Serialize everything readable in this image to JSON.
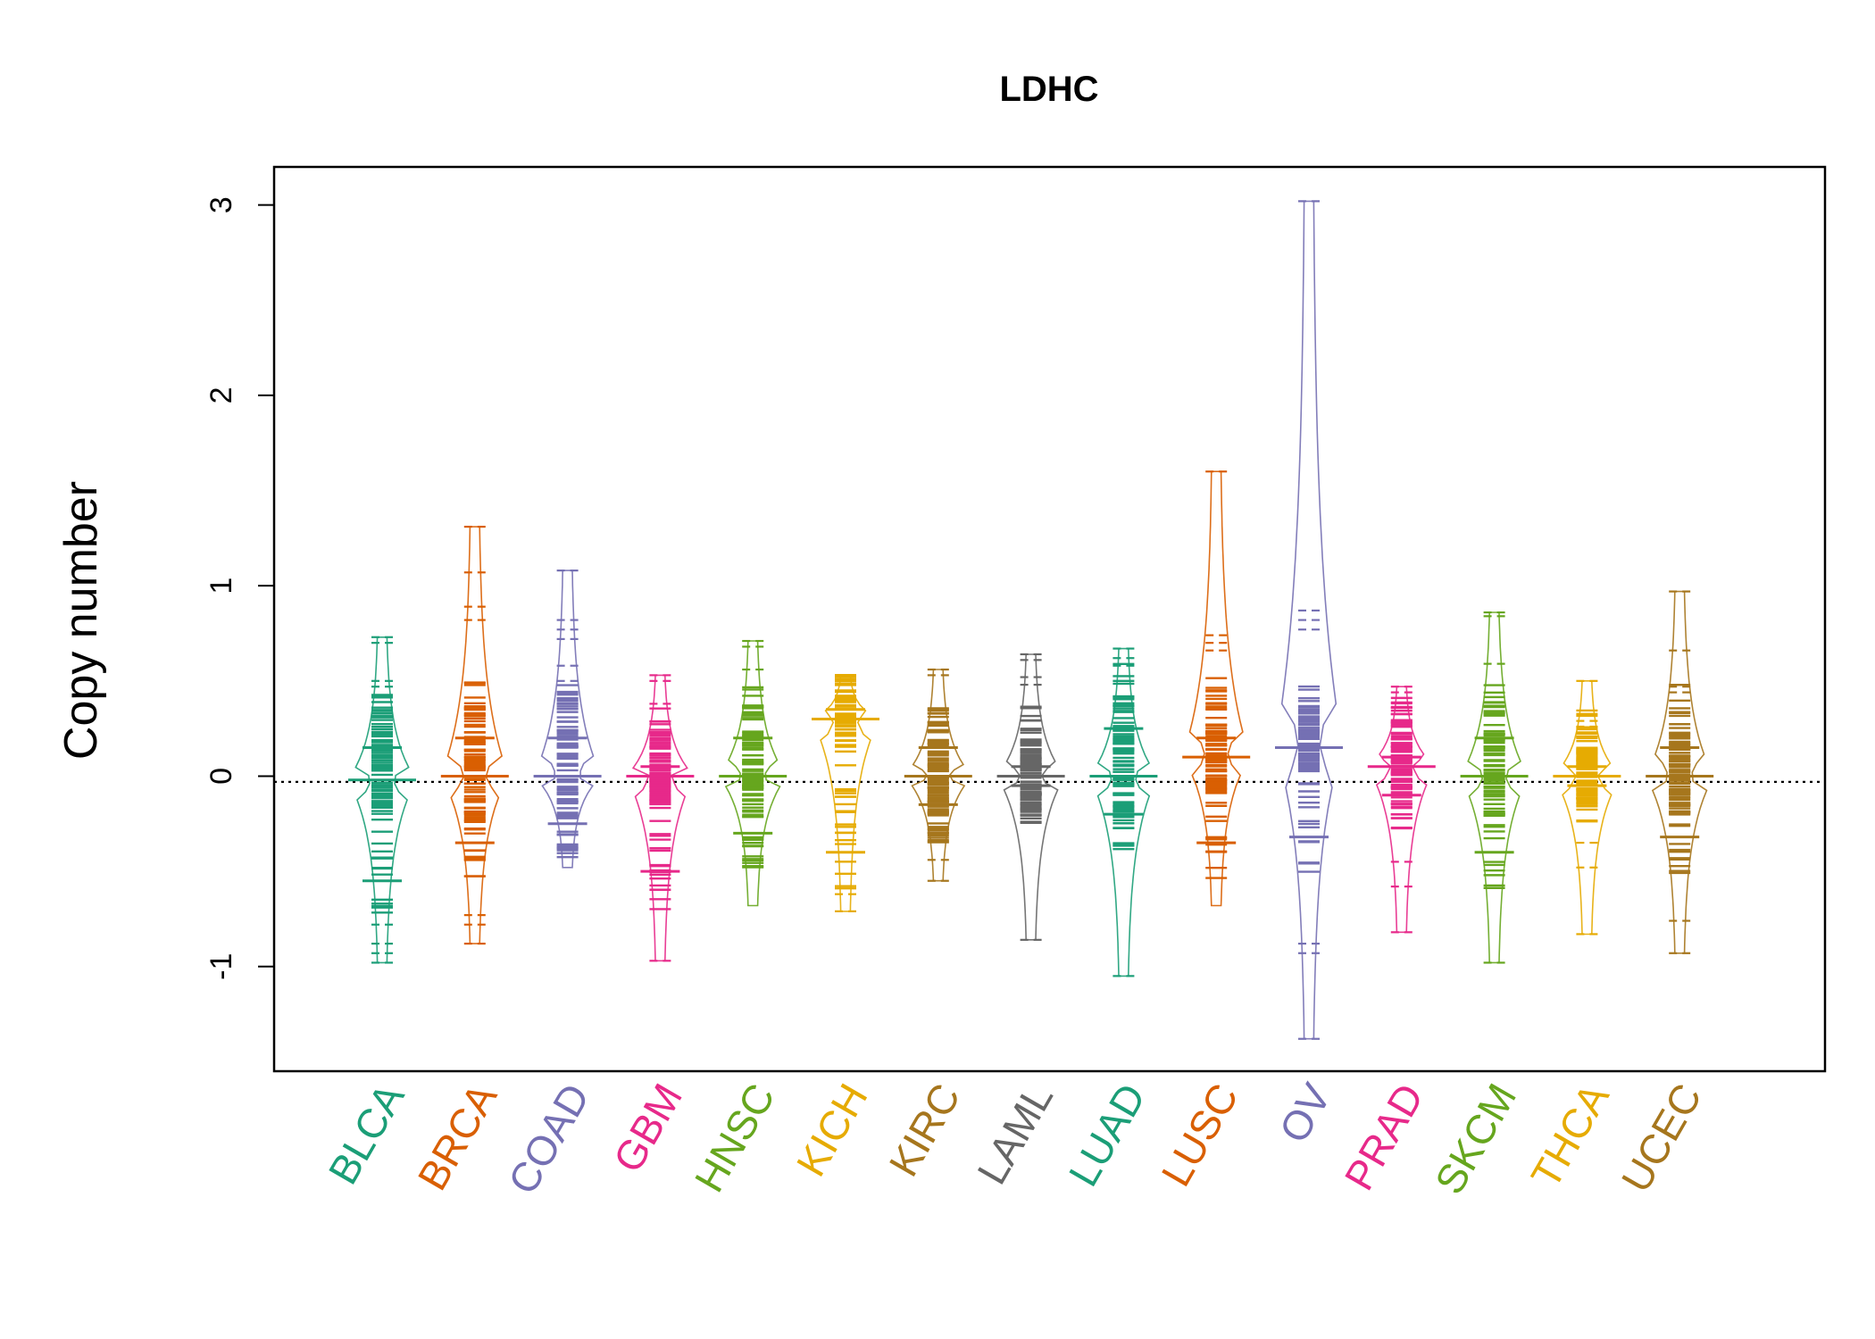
{
  "chart_data": {
    "type": "beanplot",
    "title": "LDHC",
    "xlabel": "",
    "ylabel": "Copy number",
    "ylim": [
      -1.55,
      3.2
    ],
    "yticks": [
      -1,
      0,
      1,
      2,
      3
    ],
    "ytick_labels": [
      "-1",
      "0",
      "1",
      "2",
      "3"
    ],
    "reference_line": -0.03,
    "categories": [
      "BLCA",
      "BRCA",
      "COAD",
      "GBM",
      "HNSC",
      "KICH",
      "KIRC",
      "LAML",
      "LUAD",
      "LUSC",
      "OV",
      "PRAD",
      "SKCM",
      "THCA",
      "UCEC"
    ],
    "colors": [
      "#1b9e77",
      "#d95f02",
      "#7570b3",
      "#e7298a",
      "#66a61e",
      "#e6ab02",
      "#a6761d",
      "#666666",
      "#1b9e77",
      "#d95f02",
      "#7570b3",
      "#e7298a",
      "#66a61e",
      "#e6ab02",
      "#a6761d"
    ],
    "series": [
      {
        "name": "BLCA",
        "min": -0.98,
        "max": 0.73,
        "median": -0.02,
        "upper_mode": 0.15,
        "lower_mode": -0.55,
        "outliers": [
          0.73,
          0.7,
          0.5,
          0.47,
          -0.78,
          -0.88,
          -0.93,
          -0.98
        ]
      },
      {
        "name": "BRCA",
        "min": -0.88,
        "max": 1.31,
        "median": 0.0,
        "upper_mode": 0.2,
        "lower_mode": -0.35,
        "outliers": [
          1.31,
          1.07,
          0.89,
          0.82,
          -0.73,
          -0.78,
          -0.88
        ]
      },
      {
        "name": "COAD",
        "min": -0.48,
        "max": 1.08,
        "median": 0.0,
        "upper_mode": 0.2,
        "lower_mode": -0.25,
        "outliers": [
          1.08,
          0.82,
          0.77,
          0.72,
          0.58,
          0.5
        ]
      },
      {
        "name": "GBM",
        "min": -0.97,
        "max": 0.53,
        "median": 0.0,
        "upper_mode": 0.05,
        "lower_mode": -0.5,
        "outliers": [
          0.53,
          0.5,
          0.38,
          -0.97
        ]
      },
      {
        "name": "HNSC",
        "min": -0.68,
        "max": 0.71,
        "median": 0.0,
        "upper_mode": 0.2,
        "lower_mode": -0.3,
        "outliers": [
          0.71,
          0.68,
          0.56
        ]
      },
      {
        "name": "KICH",
        "min": -0.71,
        "max": 0.53,
        "median": 0.3,
        "upper_mode": 0.35,
        "lower_mode": -0.4,
        "outliers": [
          0.53,
          -0.71,
          -0.62
        ]
      },
      {
        "name": "KIRC",
        "min": -0.55,
        "max": 0.56,
        "median": 0.0,
        "upper_mode": 0.15,
        "lower_mode": -0.15,
        "outliers": [
          0.56,
          0.53,
          -0.44,
          -0.55
        ]
      },
      {
        "name": "LAML",
        "min": -0.86,
        "max": 0.64,
        "median": 0.0,
        "upper_mode": 0.05,
        "lower_mode": -0.05,
        "outliers": [
          0.64,
          0.61,
          0.52,
          0.48,
          -0.86
        ]
      },
      {
        "name": "LUAD",
        "min": -1.05,
        "max": 0.67,
        "median": 0.0,
        "upper_mode": 0.25,
        "lower_mode": -0.2,
        "outliers": [
          0.67,
          0.62,
          0.58,
          -1.05
        ]
      },
      {
        "name": "LUSC",
        "min": -0.68,
        "max": 1.6,
        "median": 0.1,
        "upper_mode": 0.2,
        "lower_mode": -0.35,
        "outliers": [
          1.6,
          0.74,
          0.7,
          0.66
        ]
      },
      {
        "name": "OV",
        "min": -1.38,
        "max": 3.02,
        "median": 0.15,
        "upper_mode": 0.15,
        "lower_mode": -0.32,
        "outliers": [
          3.02,
          0.87,
          0.82,
          0.77,
          -0.88,
          -0.93,
          -1.38
        ]
      },
      {
        "name": "PRAD",
        "min": -0.82,
        "max": 0.47,
        "median": 0.05,
        "upper_mode": 0.1,
        "lower_mode": -0.1,
        "outliers": [
          0.47,
          0.44,
          -0.45,
          -0.58,
          -0.82
        ]
      },
      {
        "name": "SKCM",
        "min": -0.98,
        "max": 0.86,
        "median": 0.0,
        "upper_mode": 0.2,
        "lower_mode": -0.4,
        "outliers": [
          0.86,
          0.84,
          0.59,
          -0.98
        ]
      },
      {
        "name": "THCA",
        "min": -0.83,
        "max": 0.5,
        "median": 0.0,
        "upper_mode": 0.05,
        "lower_mode": -0.05,
        "outliers": [
          0.5,
          0.29,
          0.26,
          -0.35,
          -0.48,
          -0.83
        ]
      },
      {
        "name": "UCEC",
        "min": -0.93,
        "max": 0.97,
        "median": 0.0,
        "upper_mode": 0.15,
        "lower_mode": -0.32,
        "outliers": [
          0.97,
          0.66,
          0.47,
          0.44,
          -0.76,
          -0.93
        ]
      }
    ]
  }
}
